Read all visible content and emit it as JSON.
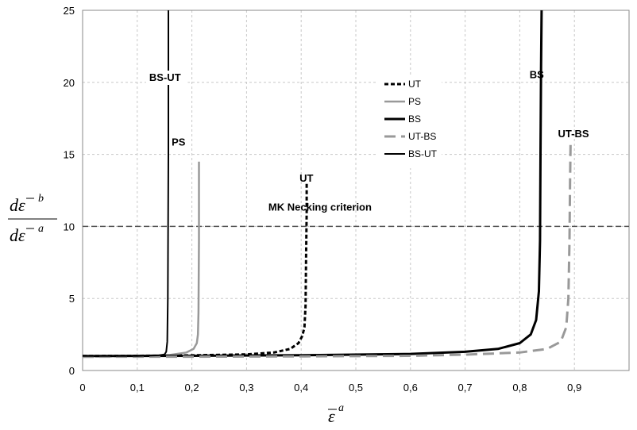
{
  "chart_data": {
    "type": "line",
    "xlim": [
      0,
      1.0
    ],
    "ylim": [
      0,
      25
    ],
    "xticks": [
      "0",
      "0,1",
      "0,2",
      "0,3",
      "0,4",
      "0,5",
      "0,6",
      "0,7",
      "0,8",
      "0,9"
    ],
    "yticks": [
      "0",
      "5",
      "10",
      "15",
      "20",
      "25"
    ],
    "grid": true,
    "xlabel": {
      "base": "ε",
      "sup": "a"
    },
    "ylabel": {
      "num_base": "dε",
      "num_sup": "b",
      "den_base": "dε",
      "den_sup": "a"
    },
    "legend_position": "center-top",
    "reference_line": {
      "y": 10,
      "label": "MK Necking criterion"
    },
    "series": [
      {
        "name": "UT",
        "color": "#000000",
        "style": "dotted",
        "width": 3,
        "x": [
          0,
          0.1,
          0.2,
          0.3,
          0.35,
          0.38,
          0.395,
          0.402,
          0.406,
          0.408,
          0.409,
          0.41,
          0.41
        ],
        "y": [
          1.0,
          1.02,
          1.05,
          1.12,
          1.25,
          1.5,
          1.9,
          2.4,
          3.0,
          4.5,
          8.0,
          11.0,
          13.0
        ]
      },
      {
        "name": "PS",
        "color": "#999999",
        "style": "solid",
        "width": 2.5,
        "x": [
          0,
          0.1,
          0.16,
          0.19,
          0.203,
          0.209,
          0.211,
          0.212,
          0.213,
          0.213
        ],
        "y": [
          1.0,
          1.02,
          1.08,
          1.25,
          1.5,
          1.9,
          2.5,
          4.0,
          9.0,
          14.5
        ]
      },
      {
        "name": "BS",
        "color": "#000000",
        "style": "solid",
        "width": 3,
        "x": [
          0,
          0.2,
          0.4,
          0.6,
          0.7,
          0.76,
          0.8,
          0.82,
          0.83,
          0.835,
          0.837,
          0.838,
          0.839,
          0.84
        ],
        "y": [
          1.0,
          1.02,
          1.06,
          1.15,
          1.3,
          1.5,
          1.9,
          2.5,
          3.5,
          5.5,
          9.0,
          15.0,
          21.0,
          25.0
        ]
      },
      {
        "name": "UT-BS",
        "color": "#999999",
        "style": "dashed",
        "width": 3,
        "x": [
          0,
          0.2,
          0.4,
          0.6,
          0.7,
          0.8,
          0.85,
          0.875,
          0.885,
          0.889,
          0.891,
          0.892,
          0.893
        ],
        "y": [
          0.95,
          0.96,
          0.98,
          1.02,
          1.1,
          1.25,
          1.5,
          2.0,
          3.0,
          5.0,
          9.0,
          13.0,
          15.9
        ]
      },
      {
        "name": "BS-UT",
        "color": "#000000",
        "style": "solid",
        "width": 2,
        "x": [
          0,
          0.1,
          0.14,
          0.15,
          0.153,
          0.155,
          0.156,
          0.157,
          0.157
        ],
        "y": [
          1.0,
          1.01,
          1.05,
          1.12,
          1.3,
          2.0,
          5.0,
          15.0,
          25.0
        ]
      }
    ],
    "annotations": [
      {
        "text": "BS-UT",
        "x": 0.122,
        "y": 20.1,
        "bg": true
      },
      {
        "text": "PS",
        "x": 0.163,
        "y": 15.6
      },
      {
        "text": "UT",
        "x": 0.397,
        "y": 13.1
      },
      {
        "text": "MK Necking criterion",
        "x": 0.34,
        "y": 11.1
      },
      {
        "text": "BS",
        "x": 0.818,
        "y": 20.3
      },
      {
        "text": "UT-BS",
        "x": 0.87,
        "y": 16.2
      }
    ]
  }
}
